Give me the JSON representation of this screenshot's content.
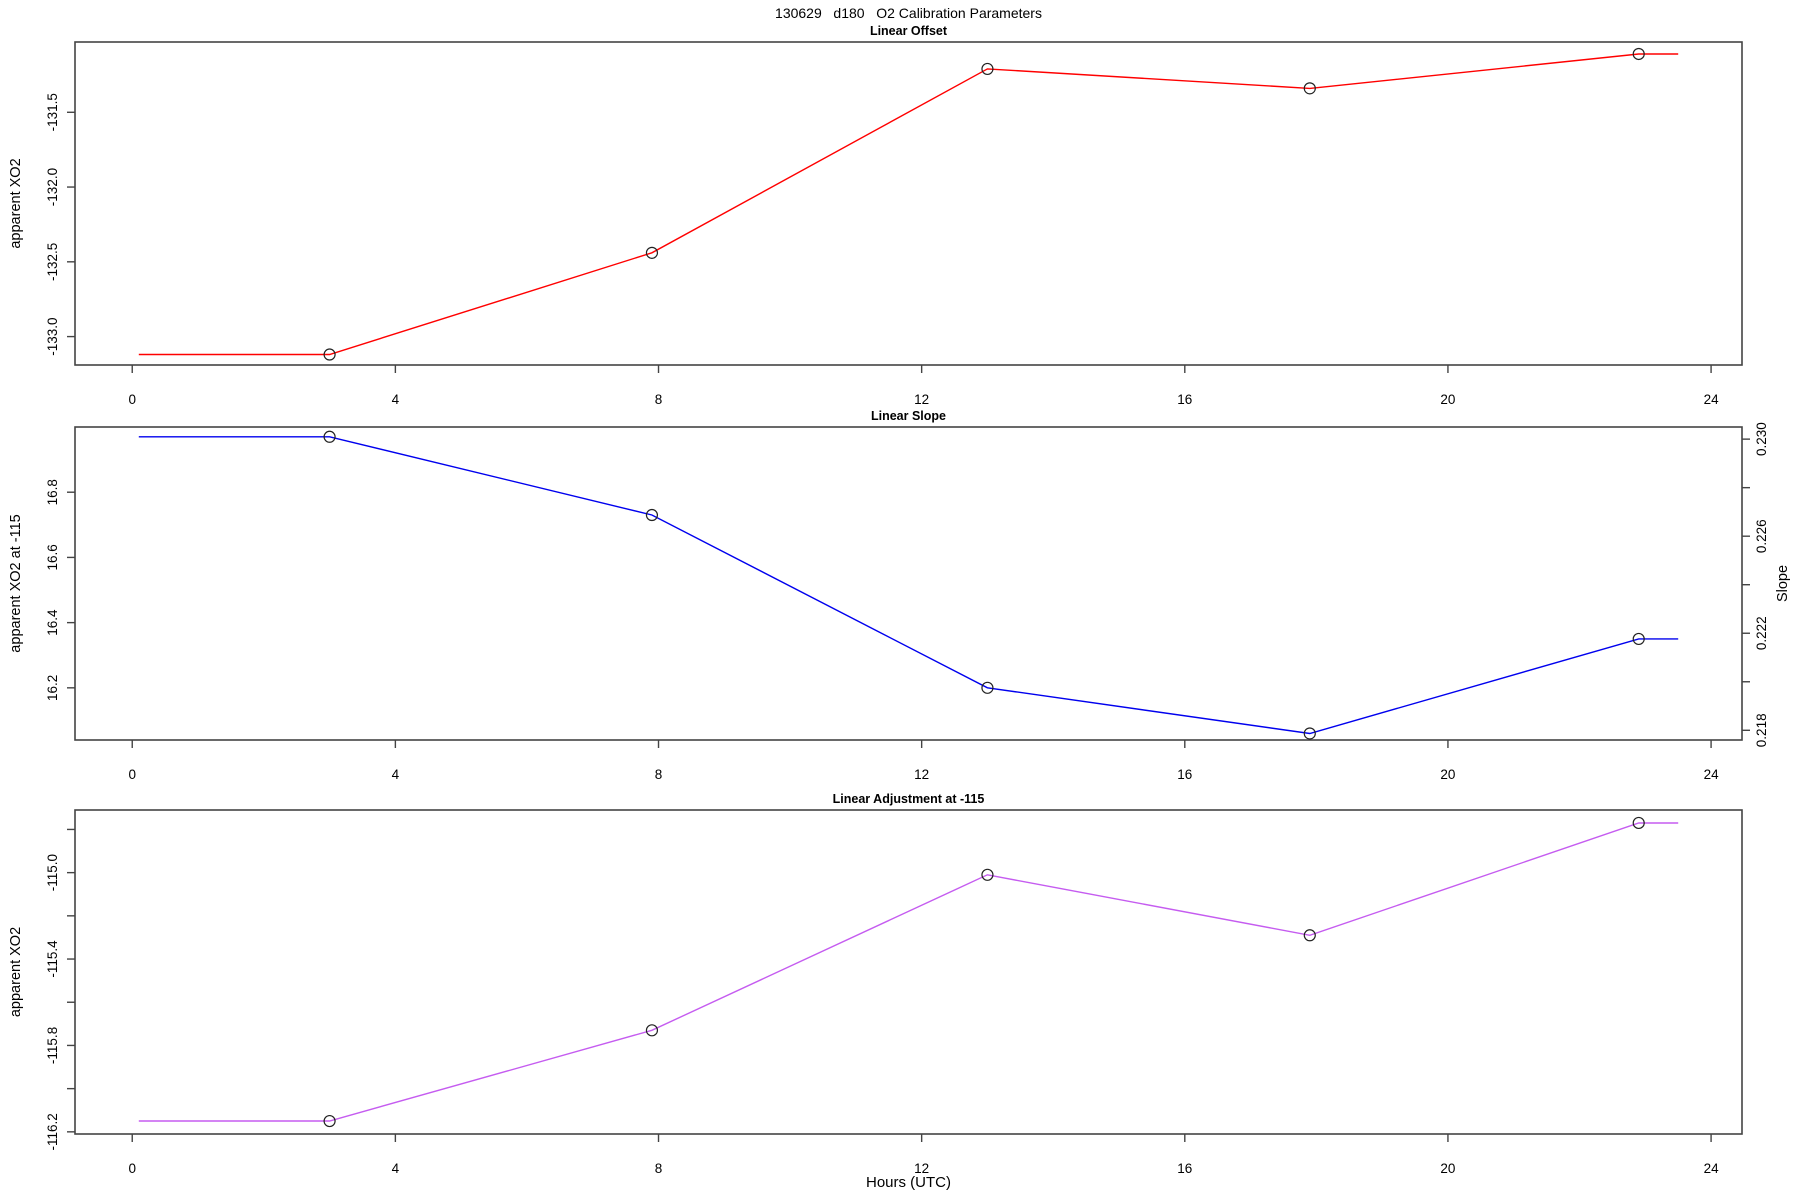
{
  "title": "130629   d180   O2 Calibration Parameters",
  "xlabel": "Hours (UTC)",
  "chart_data": [
    {
      "type": "line",
      "title": "Linear Offset",
      "ylabel": "apparent XO2",
      "color": "#ff0000",
      "marker": "open-circle",
      "x": [
        3.0,
        7.9,
        13.0,
        17.9,
        22.9
      ],
      "y": [
        -133.12,
        -132.44,
        -131.21,
        -131.34,
        -131.11
      ],
      "line_extend_x": [
        0.1,
        23.5
      ],
      "xlim": [
        -0.87,
        24.47
      ],
      "ylim": [
        -133.19,
        -131.03
      ],
      "xticks": [
        0,
        4,
        8,
        12,
        16,
        20,
        24
      ],
      "xtick_labels": [
        "0",
        "4",
        "8",
        "12",
        "16",
        "20",
        "24"
      ],
      "yticks": [
        -133.0,
        -132.5,
        -132.0,
        -131.5
      ],
      "ytick_labels": [
        "-133.0",
        "-132.5",
        "-132.0",
        "-131.5"
      ],
      "grid": "off",
      "legend": "none"
    },
    {
      "type": "line",
      "title": "Linear Slope",
      "ylabel": "apparent XO2 at -115",
      "y2label": "Slope",
      "color": "#0000ee",
      "marker": "open-circle",
      "x": [
        3.0,
        7.9,
        13.0,
        17.9,
        22.9
      ],
      "y": [
        16.97,
        16.73,
        16.2,
        16.06,
        16.35
      ],
      "y2_values": [
        0.23,
        0.2269,
        0.2198,
        0.2178,
        0.2218
      ],
      "line_extend_x": [
        0.1,
        23.5
      ],
      "xlim": [
        -0.87,
        24.47
      ],
      "ylim": [
        16.04,
        17.0
      ],
      "y2lim": [
        0.2176,
        0.2305
      ],
      "xticks": [
        0,
        4,
        8,
        12,
        16,
        20,
        24
      ],
      "xtick_labels": [
        "0",
        "4",
        "8",
        "12",
        "16",
        "20",
        "24"
      ],
      "yticks": [
        16.2,
        16.4,
        16.6,
        16.8
      ],
      "ytick_labels": [
        "16.2",
        "16.4",
        "16.6",
        "16.8"
      ],
      "y2ticks": [
        0.218,
        0.22,
        0.222,
        0.224,
        0.226,
        0.228,
        0.23
      ],
      "y2tick_labels": [
        "0.218",
        "",
        "0.222",
        "",
        "0.226",
        "",
        "0.230"
      ],
      "grid": "off",
      "legend": "none"
    },
    {
      "type": "line",
      "title": "Linear Adjustment at -115",
      "ylabel": "apparent XO2",
      "color": "#c55cf0",
      "marker": "open-circle",
      "x": [
        3.0,
        7.9,
        13.0,
        17.9,
        22.9
      ],
      "y": [
        -116.15,
        -115.73,
        -115.01,
        -115.29,
        -114.77
      ],
      "line_extend_x": [
        0.1,
        23.5
      ],
      "xlim": [
        -0.87,
        24.47
      ],
      "ylim": [
        -116.21,
        -114.71
      ],
      "xticks": [
        0,
        4,
        8,
        12,
        16,
        20,
        24
      ],
      "xtick_labels": [
        "0",
        "4",
        "8",
        "12",
        "16",
        "20",
        "24"
      ],
      "yticks": [
        -116.2,
        -116.0,
        -115.8,
        -115.6,
        -115.4,
        -115.2,
        -115.0,
        -114.8
      ],
      "ytick_labels": [
        "-116.2",
        "",
        "-115.8",
        "",
        "-115.4",
        "",
        "-115.0",
        ""
      ],
      "grid": "off",
      "legend": "none"
    }
  ]
}
